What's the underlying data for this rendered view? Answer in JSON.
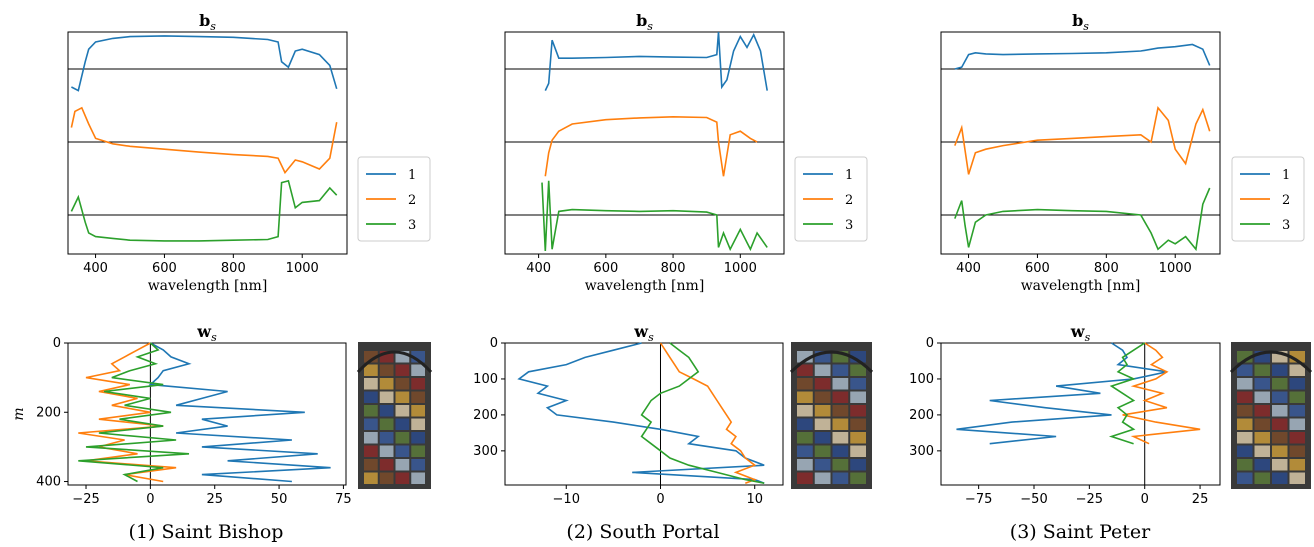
{
  "colors": {
    "s1": "#1f77b4",
    "s2": "#ff7f0e",
    "s3": "#2ca02c"
  },
  "chart_data": [
    {
      "panel": "1",
      "type": "line",
      "caption": "(1) Saint Bishop",
      "b_plot": {
        "title_main": "b",
        "title_sub": "s",
        "xlabel": "wavelength [nm]",
        "xlim": [
          320,
          1130
        ],
        "xticks": [
          "400",
          "600",
          "800",
          "1000"
        ],
        "legend": [
          "1",
          "2",
          "3"
        ],
        "series": [
          {
            "name": "1",
            "x": [
              330,
              350,
              370,
              380,
              400,
              450,
              500,
              600,
              700,
              800,
              900,
              930,
              940,
              960,
              980,
              1000,
              1050,
              1080,
              1100
            ],
            "y": [
              -0.5,
              -0.6,
              0.2,
              0.55,
              0.75,
              0.85,
              0.9,
              0.92,
              0.9,
              0.88,
              0.82,
              0.75,
              0.2,
              0.05,
              0.5,
              0.55,
              0.4,
              0.1,
              -0.55
            ]
          },
          {
            "name": "2",
            "x": [
              330,
              340,
              360,
              380,
              400,
              450,
              500,
              600,
              700,
              800,
              900,
              930,
              950,
              980,
              1000,
              1050,
              1080,
              1100
            ],
            "y": [
              0.4,
              0.85,
              0.95,
              0.5,
              0.1,
              -0.05,
              -0.12,
              -0.2,
              -0.28,
              -0.35,
              -0.4,
              -0.45,
              -0.85,
              -0.5,
              -0.55,
              -0.75,
              -0.45,
              0.55
            ]
          },
          {
            "name": "3",
            "x": [
              330,
              350,
              370,
              380,
              400,
              450,
              500,
              600,
              700,
              800,
              900,
              930,
              940,
              960,
              980,
              1000,
              1050,
              1080,
              1100
            ],
            "y": [
              0.1,
              0.5,
              -0.2,
              -0.5,
              -0.6,
              -0.65,
              -0.7,
              -0.72,
              -0.72,
              -0.7,
              -0.68,
              -0.6,
              0.9,
              0.95,
              0.2,
              0.35,
              0.4,
              0.75,
              0.55
            ]
          }
        ]
      },
      "w_plot": {
        "title_main": "w",
        "title_sub": "s",
        "ylabel": "m",
        "xlim": [
          -32,
          76
        ],
        "ylim": [
          410,
          0
        ],
        "xticks": [
          -25,
          0,
          25,
          50,
          75
        ],
        "yticks": [
          0,
          200,
          400
        ],
        "series": [
          {
            "name": "1",
            "m": [
              0,
              20,
              40,
              60,
              80,
              100,
              120,
              140,
              160,
              180,
              200,
              220,
              240,
              260,
              280,
              300,
              320,
              340,
              360,
              380,
              400
            ],
            "w": [
              0,
              5,
              8,
              15,
              5,
              3,
              0,
              30,
              20,
              10,
              60,
              20,
              30,
              10,
              55,
              20,
              65,
              30,
              70,
              20,
              55
            ]
          },
          {
            "name": "2",
            "m": [
              0,
              20,
              40,
              60,
              80,
              100,
              120,
              140,
              160,
              180,
              200,
              220,
              240,
              260,
              280,
              300,
              320,
              340,
              360,
              380,
              400
            ],
            "w": [
              0,
              -5,
              -10,
              -15,
              -12,
              -25,
              -8,
              -20,
              -5,
              -15,
              0,
              -20,
              5,
              -28,
              -10,
              -20,
              -5,
              -25,
              10,
              -10,
              5
            ]
          },
          {
            "name": "3",
            "m": [
              0,
              20,
              40,
              60,
              80,
              100,
              120,
              140,
              160,
              180,
              200,
              220,
              240,
              260,
              280,
              300,
              320,
              340,
              360,
              380,
              400
            ],
            "w": [
              0,
              3,
              -5,
              2,
              -8,
              -15,
              5,
              -18,
              0,
              -10,
              8,
              -12,
              5,
              -20,
              10,
              -25,
              15,
              -28,
              5,
              -10,
              -5
            ]
          }
        ]
      }
    },
    {
      "panel": "2",
      "type": "line",
      "caption": "(2) South Portal",
      "b_plot": {
        "title_main": "b",
        "title_sub": "s",
        "xlabel": "wavelength [nm]",
        "xlim": [
          300,
          1130
        ],
        "xticks": [
          "400",
          "600",
          "800",
          "1000"
        ],
        "legend": [
          "1",
          "2",
          "3"
        ],
        "series": [
          {
            "name": "1",
            "x": [
              420,
              430,
              440,
              460,
              500,
              600,
              700,
              800,
              900,
              930,
              935,
              945,
              960,
              980,
              1000,
              1020,
              1040,
              1060,
              1080
            ],
            "y": [
              -0.6,
              -0.4,
              0.8,
              0.3,
              0.3,
              0.32,
              0.35,
              0.33,
              0.32,
              0.4,
              1.2,
              -0.5,
              -0.3,
              0.5,
              0.9,
              0.6,
              0.95,
              0.5,
              -0.6
            ]
          },
          {
            "name": "2",
            "x": [
              420,
              430,
              440,
              460,
              500,
              600,
              700,
              800,
              900,
              930,
              935,
              950,
              970,
              1000,
              1030,
              1050
            ],
            "y": [
              -0.95,
              -0.3,
              0.05,
              0.3,
              0.5,
              0.62,
              0.67,
              0.7,
              0.68,
              0.55,
              0.0,
              -0.95,
              0.2,
              0.3,
              0.1,
              0.0
            ]
          },
          {
            "name": "3",
            "x": [
              410,
              420,
              430,
              440,
              460,
              500,
              600,
              700,
              800,
              900,
              930,
              935,
              950,
              970,
              1000,
              1030,
              1050,
              1080
            ],
            "y": [
              0.9,
              -1.0,
              0.95,
              -0.95,
              0.1,
              0.15,
              0.12,
              0.1,
              0.12,
              0.08,
              0.0,
              -0.9,
              -0.5,
              -0.95,
              -0.4,
              -0.95,
              -0.5,
              -0.9
            ]
          }
        ]
      },
      "w_plot": {
        "title_main": "w",
        "title_sub": "s",
        "ylabel": "",
        "xlim": [
          -16.5,
          13
        ],
        "ylim": [
          395,
          0
        ],
        "xticks": [
          -10,
          0,
          10
        ],
        "yticks": [
          0,
          100,
          200,
          300
        ],
        "series": [
          {
            "name": "1",
            "m": [
              0,
              20,
              40,
              60,
              80,
              100,
              120,
              140,
              160,
              180,
              200,
              220,
              240,
              260,
              280,
              300,
              320,
              340,
              360,
              380,
              390
            ],
            "w": [
              -2,
              -5,
              -8,
              -10,
              -14,
              -15,
              -12,
              -13,
              -10,
              -12,
              -11,
              -5,
              0,
              4,
              3,
              8,
              9,
              11,
              -3,
              10,
              11
            ]
          },
          {
            "name": "2",
            "m": [
              0,
              20,
              40,
              60,
              80,
              100,
              120,
              140,
              160,
              180,
              200,
              220,
              240,
              260,
              280,
              300,
              320,
              340,
              360,
              380,
              390
            ],
            "w": [
              0,
              0.5,
              1,
              1.5,
              2,
              3.5,
              5,
              5.5,
              6,
              6.5,
              7,
              7.5,
              7,
              8,
              7.5,
              8.5,
              9,
              10,
              8,
              10,
              9
            ]
          },
          {
            "name": "3",
            "m": [
              0,
              20,
              40,
              60,
              80,
              100,
              120,
              140,
              160,
              180,
              200,
              220,
              240,
              260,
              280,
              300,
              320,
              340,
              360,
              380,
              390
            ],
            "w": [
              1,
              2,
              3,
              3.5,
              4,
              3,
              2,
              0,
              -1,
              -1.5,
              -2,
              -1,
              -1.5,
              -2,
              -1,
              0,
              1,
              3,
              6,
              9,
              11
            ]
          }
        ]
      }
    },
    {
      "panel": "3",
      "type": "line",
      "caption": "(3) Saint Peter",
      "b_plot": {
        "title_main": "b",
        "title_sub": "s",
        "xlabel": "wavelength [nm]",
        "xlim": [
          320,
          1130
        ],
        "xticks": [
          "400",
          "600",
          "800",
          "1000"
        ],
        "legend": [
          "1",
          "2",
          "3"
        ],
        "series": [
          {
            "name": "1",
            "x": [
              360,
              380,
              400,
              420,
              450,
              500,
              600,
              700,
              800,
              900,
              950,
              1000,
              1050,
              1080,
              1100
            ],
            "y": [
              0.0,
              0.05,
              0.4,
              0.45,
              0.42,
              0.4,
              0.42,
              0.43,
              0.45,
              0.5,
              0.58,
              0.62,
              0.68,
              0.55,
              0.1
            ]
          },
          {
            "name": "2",
            "x": [
              360,
              380,
              400,
              420,
              450,
              500,
              600,
              700,
              800,
              900,
              930,
              950,
              980,
              1000,
              1030,
              1060,
              1080,
              1100
            ],
            "y": [
              -0.1,
              0.4,
              -0.9,
              -0.3,
              -0.2,
              -0.1,
              0.05,
              0.1,
              0.15,
              0.2,
              0.0,
              0.95,
              0.6,
              -0.2,
              -0.6,
              0.5,
              0.9,
              0.3
            ]
          },
          {
            "name": "3",
            "x": [
              360,
              380,
              390,
              400,
              420,
              450,
              500,
              600,
              700,
              800,
              900,
              930,
              950,
              980,
              1000,
              1030,
              1060,
              1080,
              1100
            ],
            "y": [
              -0.1,
              0.4,
              -0.3,
              -0.9,
              -0.2,
              0.0,
              0.1,
              0.15,
              0.12,
              0.1,
              0.0,
              -0.5,
              -0.95,
              -0.7,
              -0.8,
              -0.6,
              -0.95,
              0.3,
              0.75
            ]
          }
        ]
      },
      "w_plot": {
        "title_main": "w",
        "title_sub": "s",
        "ylabel": "",
        "xlim": [
          -92,
          34
        ],
        "ylim": [
          395,
          0
        ],
        "xticks": [
          -75,
          -50,
          -25,
          0,
          25
        ],
        "yticks": [
          0,
          100,
          200,
          300
        ],
        "series": [
          {
            "name": "1",
            "m": [
              0,
              20,
              40,
              60,
              80,
              100,
              120,
              140,
              160,
              180,
              200,
              220,
              240,
              260,
              280
            ],
            "w": [
              -15,
              -10,
              -8,
              -12,
              10,
              -5,
              -40,
              -20,
              -70,
              -45,
              -15,
              -60,
              -85,
              -40,
              -70
            ]
          },
          {
            "name": "2",
            "m": [
              0,
              20,
              40,
              60,
              80,
              100,
              120,
              140,
              160,
              180,
              200,
              220,
              240,
              260,
              280
            ],
            "w": [
              0,
              5,
              8,
              3,
              10,
              5,
              -5,
              8,
              0,
              10,
              -10,
              5,
              25,
              -5,
              2
            ]
          },
          {
            "name": "3",
            "m": [
              0,
              20,
              40,
              60,
              80,
              100,
              120,
              140,
              160,
              180,
              200,
              220,
              240,
              260,
              280
            ],
            "w": [
              0,
              -5,
              -10,
              -8,
              -12,
              -5,
              -15,
              -10,
              -5,
              -12,
              -8,
              -10,
              -5,
              -15,
              -5
            ]
          }
        ]
      }
    }
  ]
}
